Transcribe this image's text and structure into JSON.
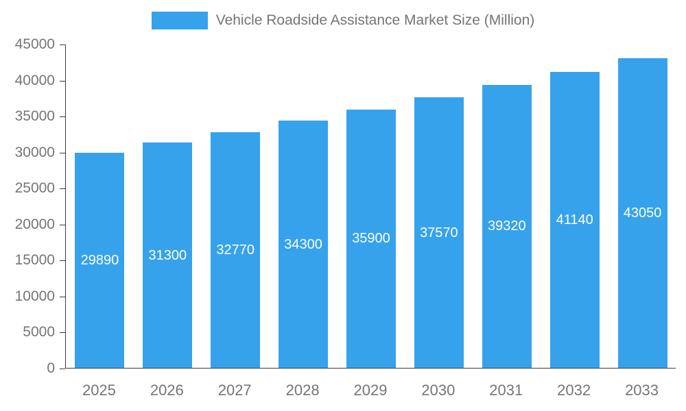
{
  "legend": {
    "title": "Vehicle Roadside Assistance Market Size (Million)"
  },
  "chart_data": {
    "type": "bar",
    "title": "Vehicle Roadside Assistance Market Size (Million)",
    "categories": [
      "2025",
      "2026",
      "2027",
      "2028",
      "2029",
      "2030",
      "2031",
      "2032",
      "2033"
    ],
    "values": [
      29890,
      31300,
      32770,
      34300,
      35900,
      37570,
      39320,
      41140,
      43050
    ],
    "xlabel": "",
    "ylabel": "",
    "ylim": [
      0,
      45000
    ],
    "y_ticks": [
      0,
      5000,
      10000,
      15000,
      20000,
      25000,
      30000,
      35000,
      40000,
      45000
    ],
    "bar_color": "#36A2EB",
    "data_label_color": "#ffffff",
    "axis_text_color": "#757575",
    "legend_position": "top",
    "grid": false,
    "data_labels": "inside-center"
  }
}
